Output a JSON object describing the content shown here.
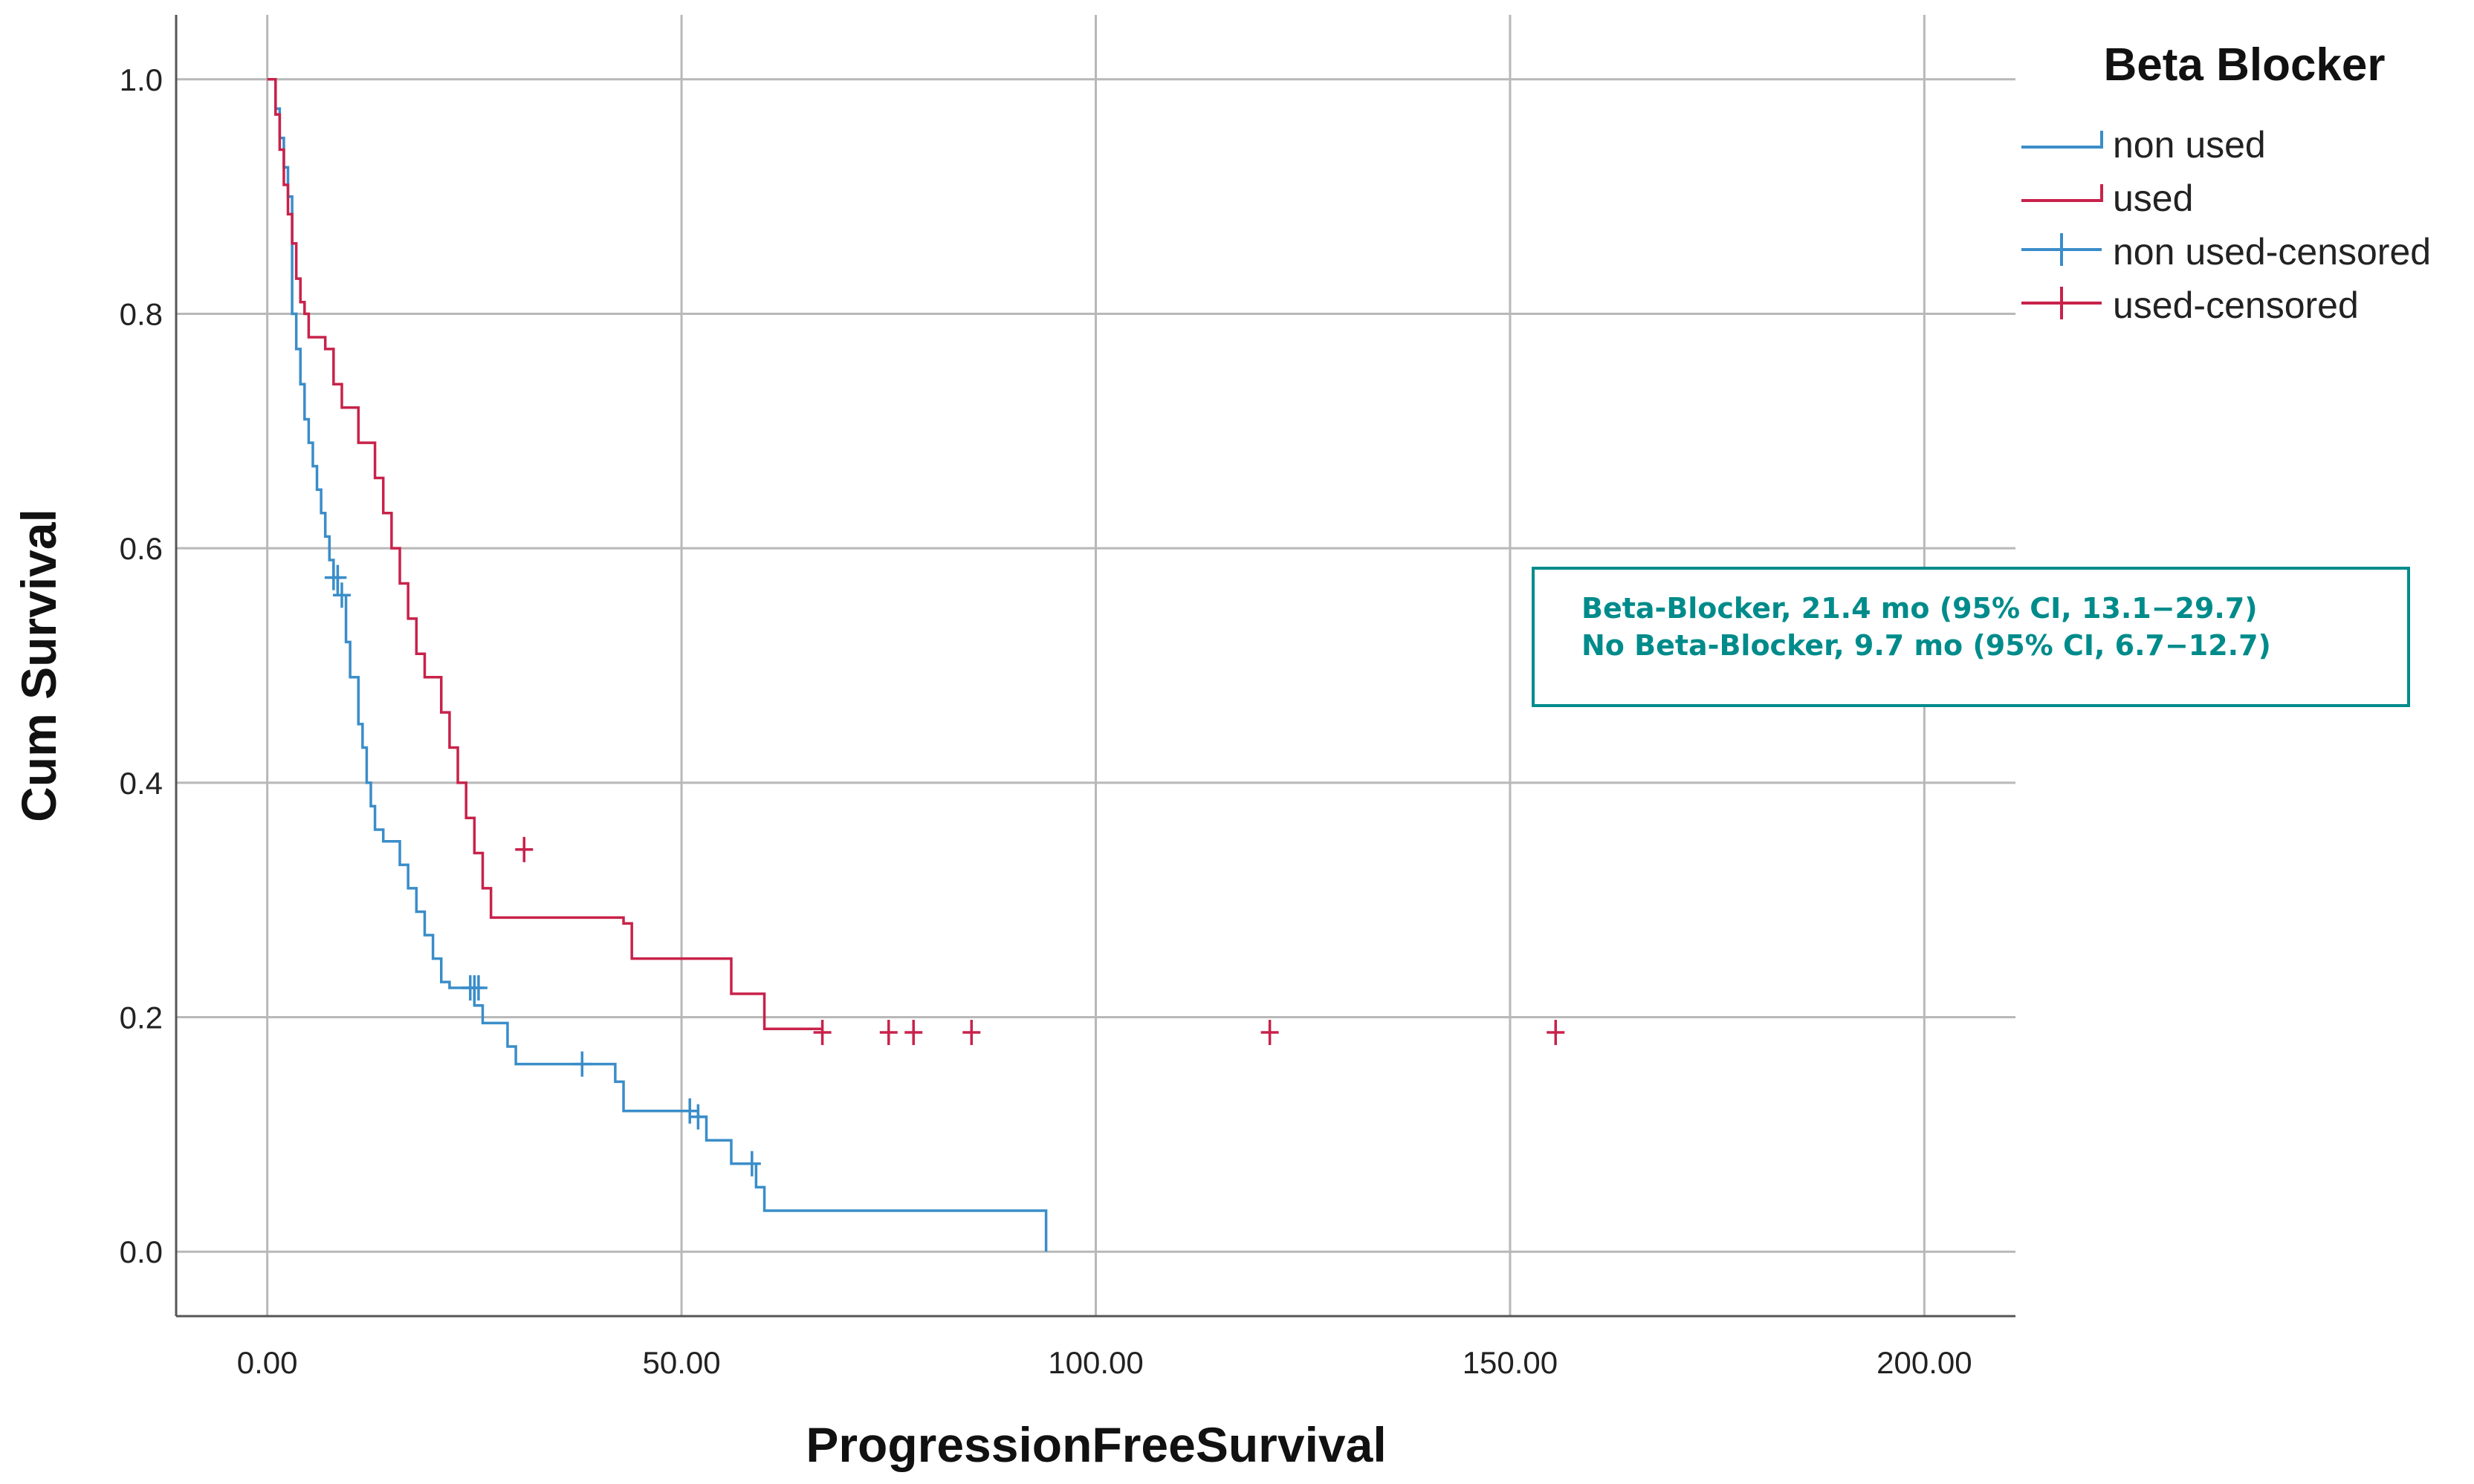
{
  "chart_data": {
    "type": "line",
    "step": true,
    "xlabel": "ProgressionFreeSurvival",
    "ylabel": "Cum Survival",
    "xlim": [
      -11,
      211
    ],
    "ylim": [
      -0.055,
      1.055
    ],
    "x_ticks": [
      0,
      50,
      100,
      150,
      200
    ],
    "x_tick_labels": [
      "0.00",
      "50.00",
      "100.00",
      "150.00",
      "200.00"
    ],
    "y_ticks": [
      0.0,
      0.2,
      0.4,
      0.6,
      0.8,
      1.0
    ],
    "y_tick_labels": [
      "0.0",
      "0.2",
      "0.4",
      "0.6",
      "0.8",
      "1.0"
    ],
    "grid": true,
    "legend_title": "Beta Blocker",
    "legend_position": "top-right outside",
    "legend_items": [
      {
        "label": "non used",
        "kind": "line",
        "color": "#3a8dc9"
      },
      {
        "label": "used",
        "kind": "line",
        "color": "#c8224a"
      },
      {
        "label": "non used-censored",
        "kind": "censor",
        "color": "#3a8dc9"
      },
      {
        "label": "used-censored",
        "kind": "censor",
        "color": "#c8224a"
      }
    ],
    "annotation": {
      "lines": [
        "Beta-Blocker, 21.4 mo (95% CI, 13.1−29.7)",
        "No Beta-Blocker, 9.7 mo (95% CI, 6.7−12.7)"
      ],
      "color": "#008b8b"
    },
    "series": [
      {
        "name": "non used",
        "color": "#3a8dc9",
        "x": [
          0,
          1,
          1.5,
          2,
          2.5,
          3,
          3.5,
          4,
          4.5,
          5,
          5.5,
          6,
          6.5,
          7,
          7.5,
          8,
          8.5,
          9.5,
          10,
          11,
          11.5,
          12,
          12.5,
          13,
          14,
          16,
          17,
          18,
          19,
          20,
          21,
          22,
          25,
          26,
          29,
          30,
          36,
          42,
          43,
          52,
          53,
          56,
          59,
          60,
          94
        ],
        "y": [
          1.0,
          0.975,
          0.95,
          0.925,
          0.9,
          0.8,
          0.77,
          0.74,
          0.71,
          0.69,
          0.67,
          0.65,
          0.63,
          0.61,
          0.59,
          0.575,
          0.56,
          0.52,
          0.49,
          0.45,
          0.43,
          0.4,
          0.38,
          0.36,
          0.35,
          0.33,
          0.31,
          0.29,
          0.27,
          0.25,
          0.23,
          0.225,
          0.21,
          0.195,
          0.175,
          0.16,
          0.16,
          0.145,
          0.12,
          0.115,
          0.095,
          0.075,
          0.055,
          0.035,
          0.0
        ],
        "censored_x": [
          8,
          8.5,
          9,
          24.5,
          25,
          25.5,
          38,
          51,
          52,
          58.5
        ],
        "censored_y": [
          0.575,
          0.575,
          0.56,
          0.225,
          0.225,
          0.225,
          0.16,
          0.12,
          0.115,
          0.075
        ]
      },
      {
        "name": "used",
        "color": "#c8224a",
        "x": [
          0,
          1,
          1.5,
          2,
          2.5,
          3,
          3.5,
          4,
          4.5,
          5,
          7,
          8,
          9,
          11,
          13,
          14,
          15,
          16,
          17,
          18,
          19,
          21,
          22,
          23,
          24,
          25,
          26,
          27,
          43,
          44,
          56,
          60,
          67
        ],
        "y": [
          1.0,
          0.97,
          0.94,
          0.91,
          0.885,
          0.86,
          0.83,
          0.81,
          0.8,
          0.78,
          0.77,
          0.74,
          0.72,
          0.69,
          0.66,
          0.63,
          0.6,
          0.57,
          0.54,
          0.51,
          0.49,
          0.46,
          0.43,
          0.4,
          0.37,
          0.34,
          0.31,
          0.285,
          0.28,
          0.25,
          0.22,
          0.19,
          0.19
        ],
        "censored_x": [
          31,
          67,
          75,
          78,
          85,
          121,
          155.5
        ],
        "censored_y": [
          0.343,
          0.187,
          0.187,
          0.187,
          0.187,
          0.187,
          0.187
        ]
      }
    ]
  }
}
